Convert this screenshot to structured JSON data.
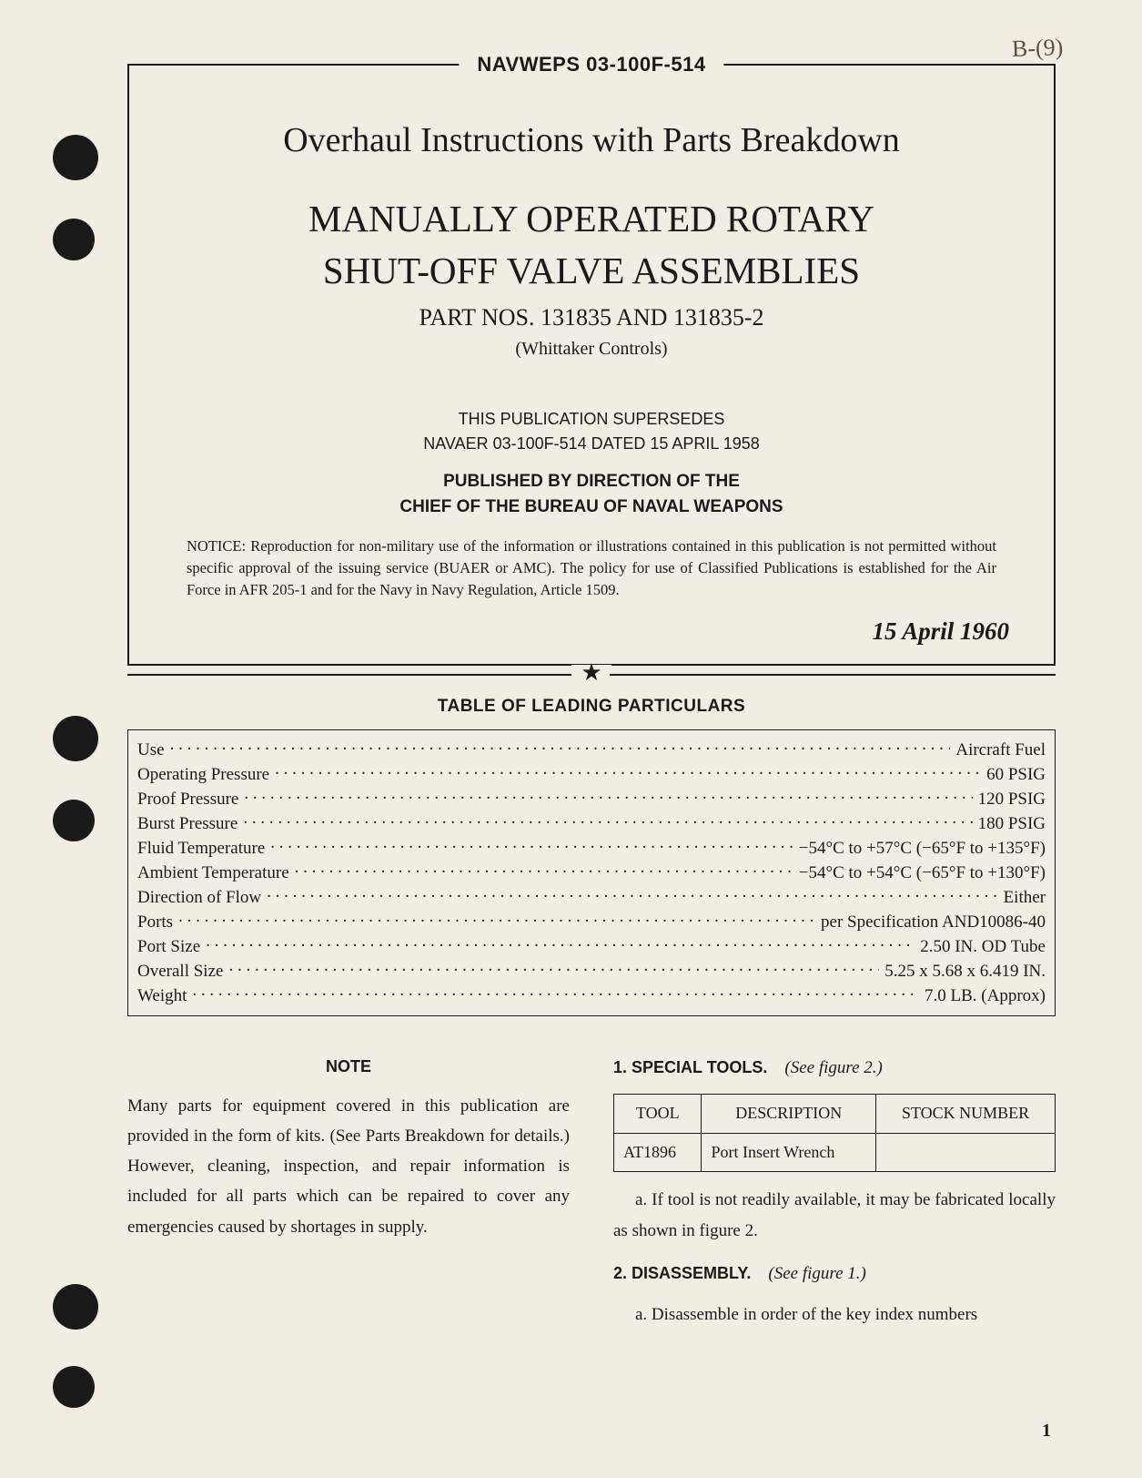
{
  "doc_id": "NAVWEPS 03-100F-514",
  "handwritten_annotation": "B-(9)",
  "title_block": {
    "overhaul_line": "Overhaul Instructions with Parts Breakdown",
    "main_title_line1": "MANUALLY OPERATED ROTARY",
    "main_title_line2": "SHUT-OFF VALVE ASSEMBLIES",
    "part_nos": "PART NOS. 131835 AND 131835-2",
    "vendor": "(Whittaker Controls)",
    "supersedes_line1": "THIS PUBLICATION SUPERSEDES",
    "supersedes_line2": "NAVAER 03-100F-514 DATED 15 APRIL 1958",
    "published_line1": "PUBLISHED BY DIRECTION OF THE",
    "published_line2": "CHIEF OF THE BUREAU OF NAVAL WEAPONS",
    "notice": "NOTICE: Reproduction for non-military use of the information or illustrations contained in this publication is not permitted without specific approval of the issuing service (BUAER or AMC). The policy for use of Classified Publications is established for the Air Force in AFR 205-1 and for the Navy in Navy Regulation, Article 1509.",
    "date": "15 April 1960"
  },
  "particulars_heading": "TABLE OF LEADING PARTICULARS",
  "particulars": [
    {
      "label": "Use",
      "value": "Aircraft Fuel"
    },
    {
      "label": "Operating Pressure",
      "value": "60 PSIG"
    },
    {
      "label": "Proof Pressure",
      "value": "120 PSIG"
    },
    {
      "label": "Burst Pressure",
      "value": "180 PSIG"
    },
    {
      "label": "Fluid Temperature",
      "value": "−54°C to +57°C (−65°F to +135°F)"
    },
    {
      "label": "Ambient Temperature",
      "value": "−54°C to +54°C (−65°F to +130°F)"
    },
    {
      "label": "Direction of Flow",
      "value": "Either"
    },
    {
      "label": "Ports",
      "value": "per Specification AND10086-40"
    },
    {
      "label": "Port Size",
      "value": "2.50 IN. OD Tube"
    },
    {
      "label": "Overall Size",
      "value": "5.25 x 5.68 x 6.419 IN."
    },
    {
      "label": "Weight",
      "value": "7.0 LB. (Approx)"
    }
  ],
  "note": {
    "heading": "NOTE",
    "body": "Many parts for equipment covered in this publication are provided in the form of kits. (See Parts Breakdown for details.) However, cleaning, inspection, and repair information is included for all parts which can be repaired to cover any emergencies caused by shortages in supply."
  },
  "right_col": {
    "sec1_num": "1. SPECIAL TOOLS.",
    "sec1_ref": "(See figure 2.)",
    "tools_table": {
      "headers": [
        "TOOL",
        "DESCRIPTION",
        "STOCK NUMBER"
      ],
      "rows": [
        [
          "AT1896",
          "Port Insert Wrench",
          ""
        ]
      ]
    },
    "sec1_a": "a. If tool is not readily available, it may be fabricated locally as shown in figure 2.",
    "sec2_num": "2. DISASSEMBLY.",
    "sec2_ref": "(See figure 1.)",
    "sec2_a": "a. Disassemble in order of the key index numbers"
  },
  "page_number": "1",
  "colors": {
    "paper": "#f0ede4",
    "ink": "#1a1a1a"
  }
}
